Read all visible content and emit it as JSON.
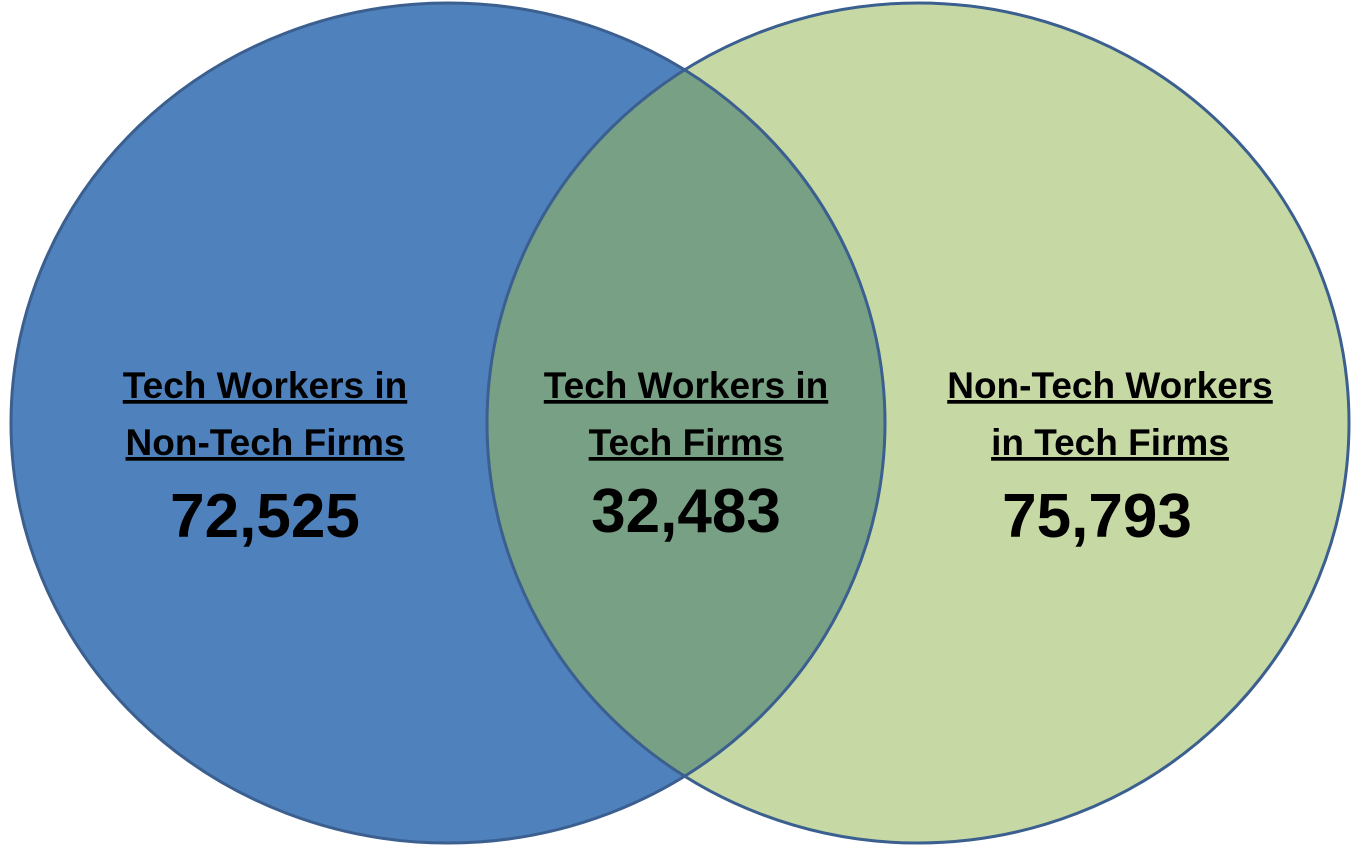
{
  "regions": [
    {
      "label": [
        "Tech Workers in",
        "Non-Tech Firms"
      ],
      "value": "72,525"
    },
    {
      "label": [
        "Tech Workers in",
        "Tech Firms"
      ],
      "value": "32,483"
    },
    {
      "label": [
        "Non-Tech Workers",
        "in Tech Firms"
      ],
      "value": "75,793"
    }
  ]
}
